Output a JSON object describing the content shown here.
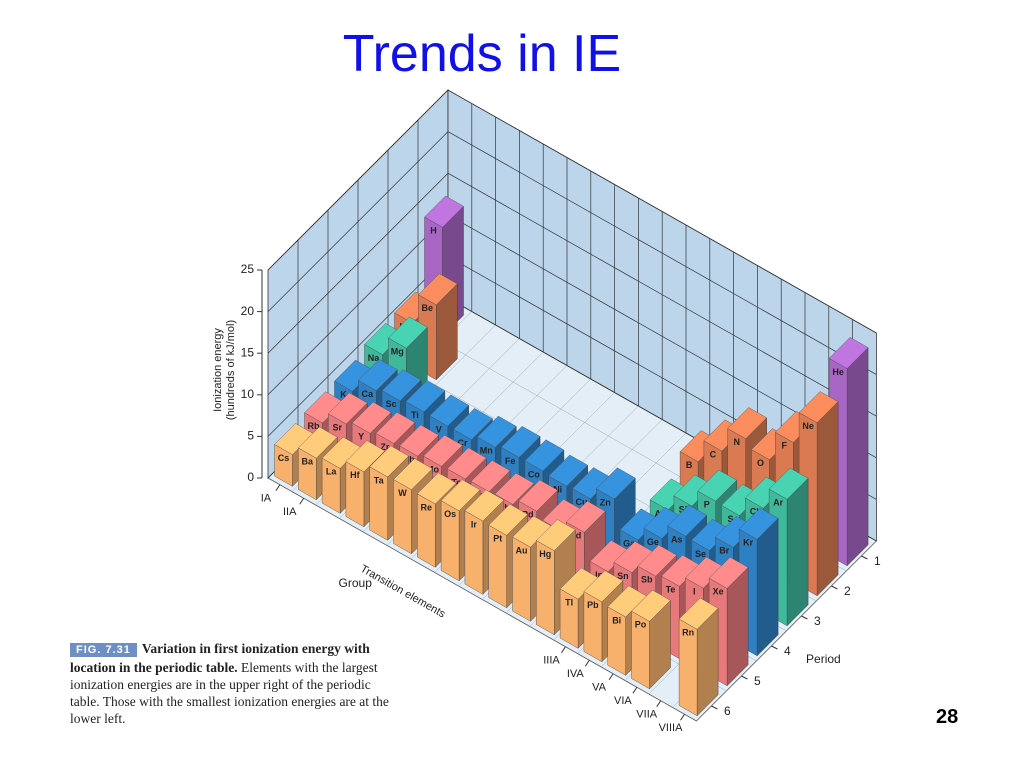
{
  "title": "Trends in IE",
  "page_number": "28",
  "caption": {
    "figure": "FIG. 7.31",
    "bold": "Variation in first ionization energy with location in the periodic table.",
    "text": "Elements with the largest ionization energies are in the upper right of the periodic table. Those with the smallest ionization energies are at the lower left."
  },
  "chart_data": {
    "type": "bar3d",
    "ylabel": [
      "Ionization energy",
      "(hundreds of kJ/mol)"
    ],
    "xlabel": "Group",
    "zlabel": "Period",
    "categories": [
      "IA",
      "IIA",
      null,
      null,
      null,
      null,
      null,
      null,
      null,
      null,
      null,
      null,
      "IIIA",
      "IVA",
      "VA",
      "VIA",
      "VIIA",
      "VIIIA"
    ],
    "category_group_label": "Transition elements",
    "ylim": [
      0,
      25
    ],
    "yticks": [
      0,
      5,
      10,
      15,
      20,
      25
    ],
    "grid": true,
    "series": [
      {
        "name": "1",
        "color": "#a866c4",
        "labels": [
          "H",
          null,
          null,
          null,
          null,
          null,
          null,
          null,
          null,
          null,
          null,
          null,
          null,
          null,
          null,
          null,
          null,
          "He"
        ],
        "values": [
          13.1,
          null,
          null,
          null,
          null,
          null,
          null,
          null,
          null,
          null,
          null,
          null,
          null,
          null,
          null,
          null,
          null,
          23.7
        ]
      },
      {
        "name": "2",
        "color": "#d97a52",
        "labels": [
          "Li",
          "Be",
          null,
          null,
          null,
          null,
          null,
          null,
          null,
          null,
          null,
          null,
          "B",
          "C",
          "N",
          "O",
          "F",
          "Ne"
        ],
        "values": [
          5.2,
          9.0,
          null,
          null,
          null,
          null,
          null,
          null,
          null,
          null,
          null,
          null,
          8.0,
          10.9,
          14.0,
          13.1,
          16.8,
          20.8
        ]
      },
      {
        "name": "3",
        "color": "#3fb89c",
        "labels": [
          "Na",
          "Mg",
          null,
          null,
          null,
          null,
          null,
          null,
          null,
          null,
          null,
          null,
          "Al",
          "Si",
          "P",
          "S",
          "Cl",
          "Ar"
        ],
        "values": [
          5.0,
          7.4,
          null,
          null,
          null,
          null,
          null,
          null,
          null,
          null,
          null,
          null,
          5.8,
          7.9,
          10.1,
          10.0,
          12.5,
          15.2
        ]
      },
      {
        "name": "4",
        "color": "#2f80c2",
        "labels": [
          "K",
          "Ca",
          "Sc",
          "Ti",
          "V",
          "Cr",
          "Mn",
          "Fe",
          "Co",
          "Ni",
          "Cu",
          "Zn",
          "Ga",
          "Ge",
          "As",
          "Se",
          "Br",
          "Kr"
        ],
        "values": [
          4.2,
          5.9,
          6.3,
          6.6,
          6.5,
          6.5,
          7.2,
          7.6,
          7.6,
          7.4,
          7.5,
          9.1,
          5.8,
          7.6,
          9.5,
          9.4,
          11.4,
          14.0
        ]
      },
      {
        "name": "5",
        "color": "#e8797b",
        "labels": [
          "Rb",
          "Sr",
          "Y",
          "Zr",
          "Nb",
          "Mo",
          "Tc",
          "Ru",
          "Rh",
          "Pd",
          "Ag",
          "Cd",
          "In",
          "Sn",
          "Sb",
          "Te",
          "I",
          "Xe"
        ],
        "values": [
          4.0,
          5.5,
          6.0,
          6.4,
          6.5,
          6.9,
          7.0,
          7.1,
          7.2,
          8.0,
          7.3,
          8.7,
          5.6,
          7.1,
          8.3,
          8.7,
          10.1,
          11.7
        ]
      },
      {
        "name": "6",
        "color": "#f7b16c",
        "labels": [
          "Cs",
          "Ba",
          "La",
          "Hf",
          "Ta",
          "W",
          "Re",
          "Os",
          "Ir",
          "Pt",
          "Au",
          "Hg",
          "Tl",
          "Pb",
          "Bi",
          "Po",
          null,
          "Rn"
        ],
        "values": [
          3.8,
          5.0,
          5.4,
          6.6,
          7.6,
          7.7,
          7.6,
          8.4,
          8.8,
          8.7,
          8.9,
          10.1,
          5.9,
          7.2,
          7.0,
          8.1,
          null,
          10.4
        ]
      }
    ]
  }
}
